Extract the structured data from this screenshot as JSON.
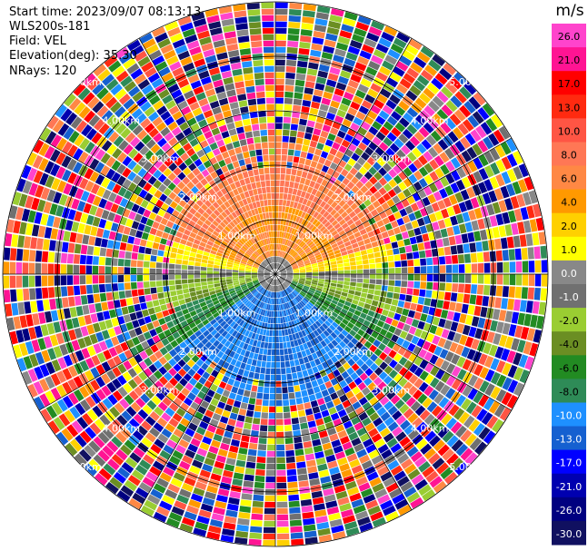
{
  "header": {
    "start_time": "Start time: 2023/09/07 08:13:13",
    "instrument": "WLS200s-181",
    "field": "Field: VEL",
    "elevation": "Elevation(deg): 35.30",
    "nrays": "NRays: 120"
  },
  "range_rings": {
    "labels": [
      "1.00km",
      "2.00km",
      "3.00km",
      "4.00km",
      "5.00km"
    ],
    "values_km": [
      1,
      2,
      3,
      4,
      5
    ]
  },
  "colorbar": {
    "unit": "m/s",
    "ticks": [
      "26.0",
      "21.0",
      "17.0",
      "13.0",
      "10.0",
      "8.0",
      "6.0",
      "4.0",
      "2.0",
      "1.0",
      "0.0",
      "-1.0",
      "-2.0",
      "-4.0",
      "-6.0",
      "-8.0",
      "-10.0",
      "-13.0",
      "-17.0",
      "-21.0",
      "-26.0",
      "-30.0"
    ],
    "colors": [
      "#ff44cc",
      "#ff1493",
      "#ff0000",
      "#ff2a10",
      "#ff5544",
      "#ff7755",
      "#ff8844",
      "#ff9900",
      "#ffd000",
      "#ffff00",
      "#888888",
      "#707070",
      "#9acd32",
      "#6b8e23",
      "#228b22",
      "#2e8b57",
      "#1e90ff",
      "#1560d0",
      "#0000ff",
      "#0000b0",
      "#000080",
      "#101060"
    ]
  }
}
